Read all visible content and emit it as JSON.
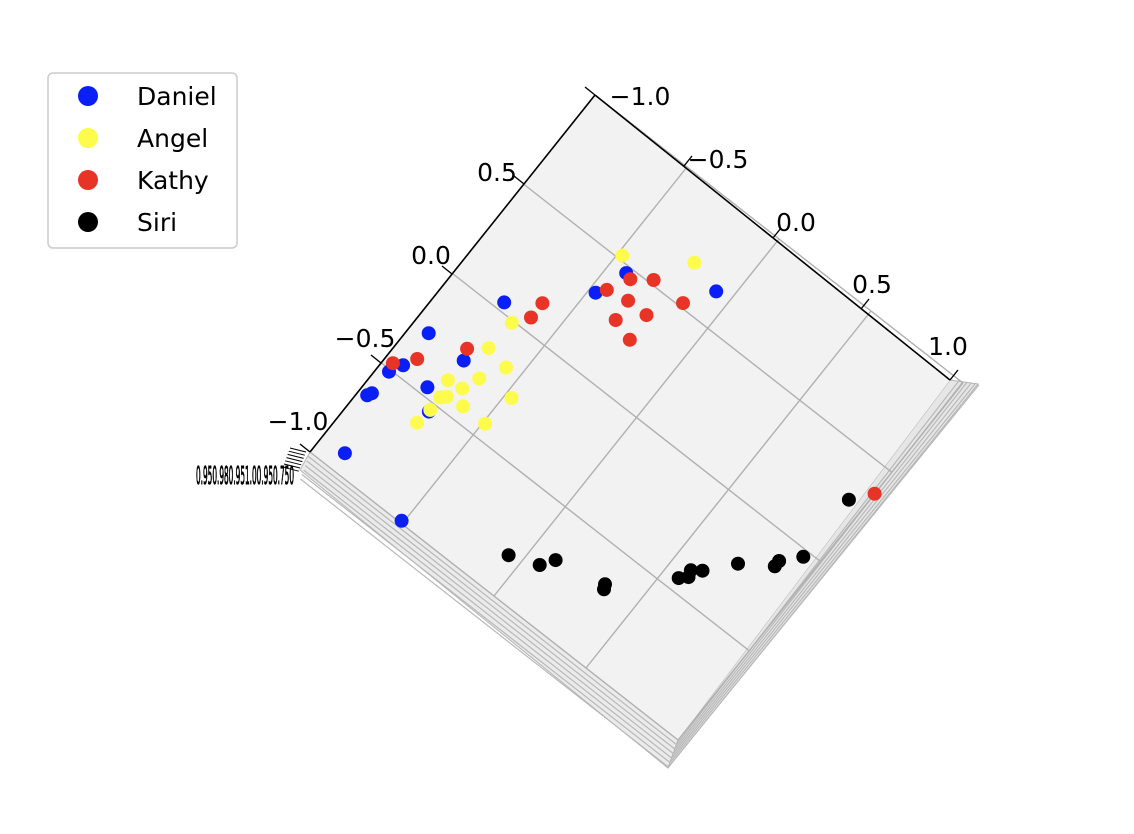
{
  "chart_data": {
    "type": "scatter",
    "title": "",
    "view": "3d-projection-top",
    "axis1_ticks": [
      "−1.0",
      "−0.5",
      "0.0",
      "0.5",
      "1.0"
    ],
    "axis2_ticks": [
      "−1.0",
      "−0.5",
      "0.0",
      "0.5"
    ],
    "axis3_ticks_text": "0.950.980.951.00.950.750",
    "axis_range": [
      -1.0,
      1.0
    ],
    "grid": true,
    "legend_position": "top-left",
    "series": [
      {
        "name": "Daniel",
        "color": "#0a1ff5",
        "x": [
          -0.42,
          -0.07,
          -0.75,
          -0.78,
          -0.73,
          -0.92,
          -0.71,
          -0.92,
          -0.95,
          -0.95,
          -0.96,
          -0.88,
          -0.51,
          -0.47
        ],
        "y": [
          0.47,
          0.65,
          0.04,
          -0.46,
          -0.27,
          -0.27,
          -0.54,
          -0.45,
          -0.51,
          -0.63,
          -0.65,
          -0.91,
          -0.99,
          0.32
        ]
      },
      {
        "name": "Angel",
        "color": "#fdfc4c",
        "x": [
          -0.48,
          -0.22,
          -0.67,
          -0.68,
          -0.57,
          -0.63,
          -0.47,
          -0.66,
          -0.73,
          -0.69,
          -0.71,
          -0.61,
          -0.49,
          -0.71,
          -0.72
        ],
        "y": [
          0.52,
          0.69,
          -0.01,
          -0.16,
          -0.18,
          -0.29,
          -0.27,
          -0.37,
          -0.38,
          -0.44,
          -0.46,
          -0.43,
          -0.43,
          -0.53,
          -0.61
        ]
      },
      {
        "name": "Kathy",
        "color": "#e83427",
        "x": [
          -0.39,
          -0.31,
          -0.15,
          -0.44,
          -0.33,
          -0.34,
          -0.24,
          -0.23,
          -0.62,
          -0.62,
          -0.75,
          -0.89,
          -0.96,
          1.0
        ],
        "y": [
          0.46,
          0.52,
          0.52,
          0.36,
          0.28,
          0.38,
          0.38,
          0.25,
          0.06,
          0.14,
          -0.22,
          -0.39,
          -0.47,
          0.38
        ]
      },
      {
        "name": "Siri",
        "color": "#000000",
        "x": [
          0.93,
          0.93,
          0.86,
          0.86,
          0.73,
          0.63,
          0.59,
          0.6,
          0.57,
          0.34,
          0.35,
          0.11,
          0.07,
          -0.06
        ],
        "y": [
          0.29,
          -0.03,
          -0.14,
          -0.11,
          -0.23,
          -0.35,
          -0.38,
          -0.41,
          -0.44,
          -0.66,
          -0.68,
          -0.71,
          -0.77,
          -0.82
        ]
      }
    ]
  }
}
